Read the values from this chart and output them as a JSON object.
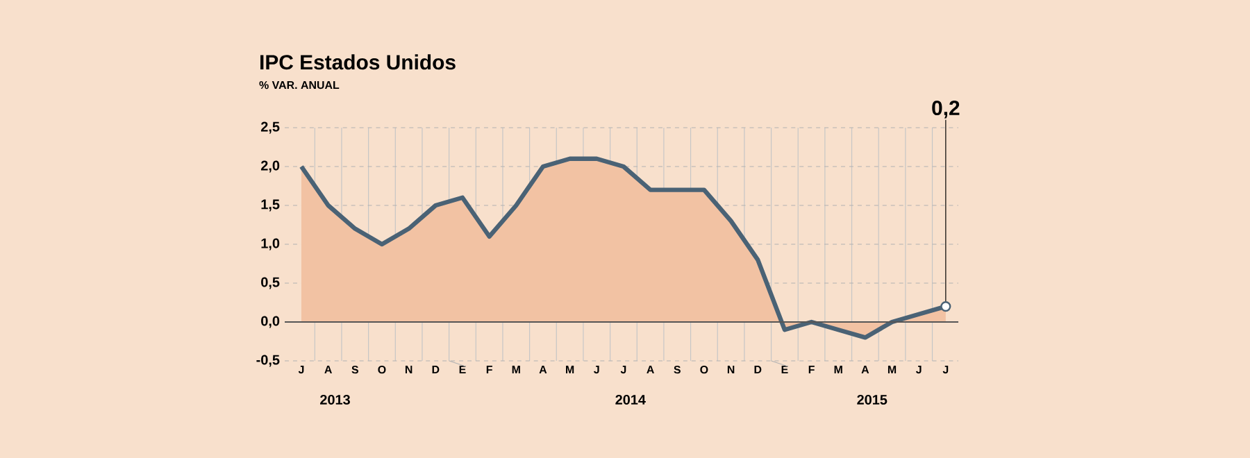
{
  "chart_data": {
    "type": "area",
    "title": "IPC Estados Unidos",
    "subtitle": "% VAR. ANUAL",
    "categories": [
      "J",
      "A",
      "S",
      "O",
      "N",
      "D",
      "E",
      "F",
      "M",
      "A",
      "M",
      "J",
      "J",
      "A",
      "S",
      "O",
      "N",
      "D",
      "E",
      "F",
      "M",
      "A",
      "M",
      "J",
      "J"
    ],
    "series": [
      {
        "color": "#f2c2a3",
        "values": [
          2.0,
          1.5,
          1.2,
          1.0,
          1.2,
          1.5,
          1.6,
          1.1,
          1.5,
          2.0,
          2.1,
          2.1,
          2.0,
          1.7,
          1.7,
          1.7,
          1.3,
          0.8,
          -0.1,
          0.0,
          -0.1,
          -0.2,
          0.0,
          0.1,
          0.2
        ]
      }
    ],
    "ylim": [
      -0.5,
      2.5
    ],
    "yticks": [
      {
        "value": -0.5,
        "label": "-0,5"
      },
      {
        "value": 0,
        "label": "0,0"
      },
      {
        "value": 0.5,
        "label": "0,5"
      },
      {
        "value": 1.0,
        "label": "1,0"
      },
      {
        "value": 1.5,
        "label": "1,5"
      },
      {
        "value": 2.0,
        "label": "2,0"
      },
      {
        "value": 2.5,
        "label": "2,5"
      }
    ],
    "ref_lines": [
      {
        "axis": "y",
        "value": 0,
        "color": "#555555"
      }
    ],
    "grid": true,
    "annotations": [
      "2013",
      "2014",
      "2015",
      {
        "text": "0,2",
        "y": 0.2
      }
    ]
  }
}
